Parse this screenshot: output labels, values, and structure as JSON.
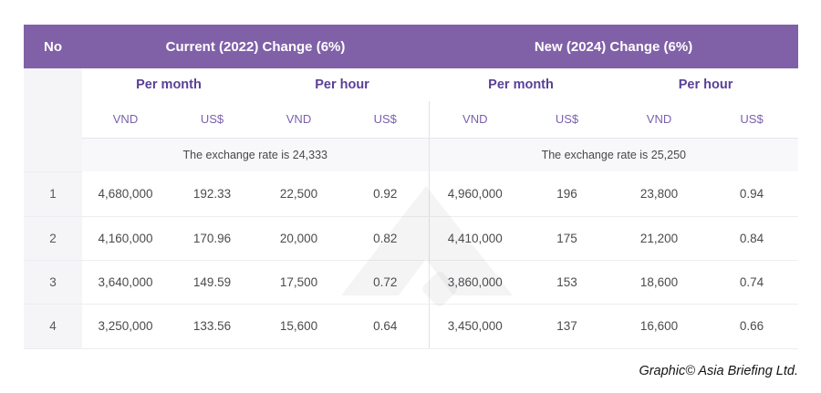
{
  "meta": {
    "credit": "Graphic© Asia Briefing Ltd."
  },
  "colors": {
    "header_purple": "#8061a8",
    "period_header_purple": "#5a3f97",
    "unit_header_purple": "#7b60ae",
    "light_row_gray": "#f8f8fa",
    "no_column_gray": "#f5f5f7",
    "body_text_gray": "#4b4b4d"
  },
  "icons": {
    "watermark": "asia-briefing-chevron-logo"
  },
  "table": {
    "no_header": "No",
    "groups": [
      {
        "title": "Current (2022) Change (6%)",
        "period_headers": [
          "Per month",
          "Per hour"
        ],
        "unit_headers": [
          "VND",
          "US$",
          "VND",
          "US$"
        ],
        "exchange_note": "The exchange rate is 24,333"
      },
      {
        "title": "New (2024) Change (6%)",
        "period_headers": [
          "Per month",
          "Per hour"
        ],
        "unit_headers": [
          "VND",
          "US$",
          "VND",
          "US$"
        ],
        "exchange_note": "The exchange rate is 25,250"
      }
    ],
    "rows": [
      {
        "no": "1",
        "values": [
          "4,680,000",
          "192.33",
          "22,500",
          "0.92",
          "4,960,000",
          "196",
          "23,800",
          "0.94"
        ]
      },
      {
        "no": "2",
        "values": [
          "4,160,000",
          "170.96",
          "20,000",
          "0.82",
          "4,410,000",
          "175",
          "21,200",
          "0.84"
        ]
      },
      {
        "no": "3",
        "values": [
          "3,640,000",
          "149.59",
          "17,500",
          "0.72",
          "3,860,000",
          "153",
          "18,600",
          "0.74"
        ]
      },
      {
        "no": "4",
        "values": [
          "3,250,000",
          "133.56",
          "15,600",
          "0.64",
          "3,450,000",
          "137",
          "16,600",
          "0.66"
        ]
      }
    ]
  },
  "chart_data": {
    "type": "table",
    "columns": [
      "No",
      "Current (2022) Per month VND",
      "Current (2022) Per month US$",
      "Current (2022) Per hour VND",
      "Current (2022) Per hour US$",
      "New (2024) Per month VND",
      "New (2024) Per month US$",
      "New (2024) Per hour VND",
      "New (2024) Per hour US$"
    ],
    "rows": [
      [
        1,
        4680000,
        192.33,
        22500,
        0.92,
        4960000,
        196,
        23800,
        0.94
      ],
      [
        2,
        4160000,
        170.96,
        20000,
        0.82,
        4410000,
        175,
        21200,
        0.84
      ],
      [
        3,
        3640000,
        149.59,
        17500,
        0.72,
        3860000,
        153,
        18600,
        0.74
      ],
      [
        4,
        3250000,
        133.56,
        15600,
        0.64,
        3450000,
        137,
        16600,
        0.66
      ]
    ],
    "notes": {
      "current_change_pct": 6,
      "new_change_pct": 6,
      "exchange_rate_2022": 24333,
      "exchange_rate_2024": 25250
    }
  }
}
